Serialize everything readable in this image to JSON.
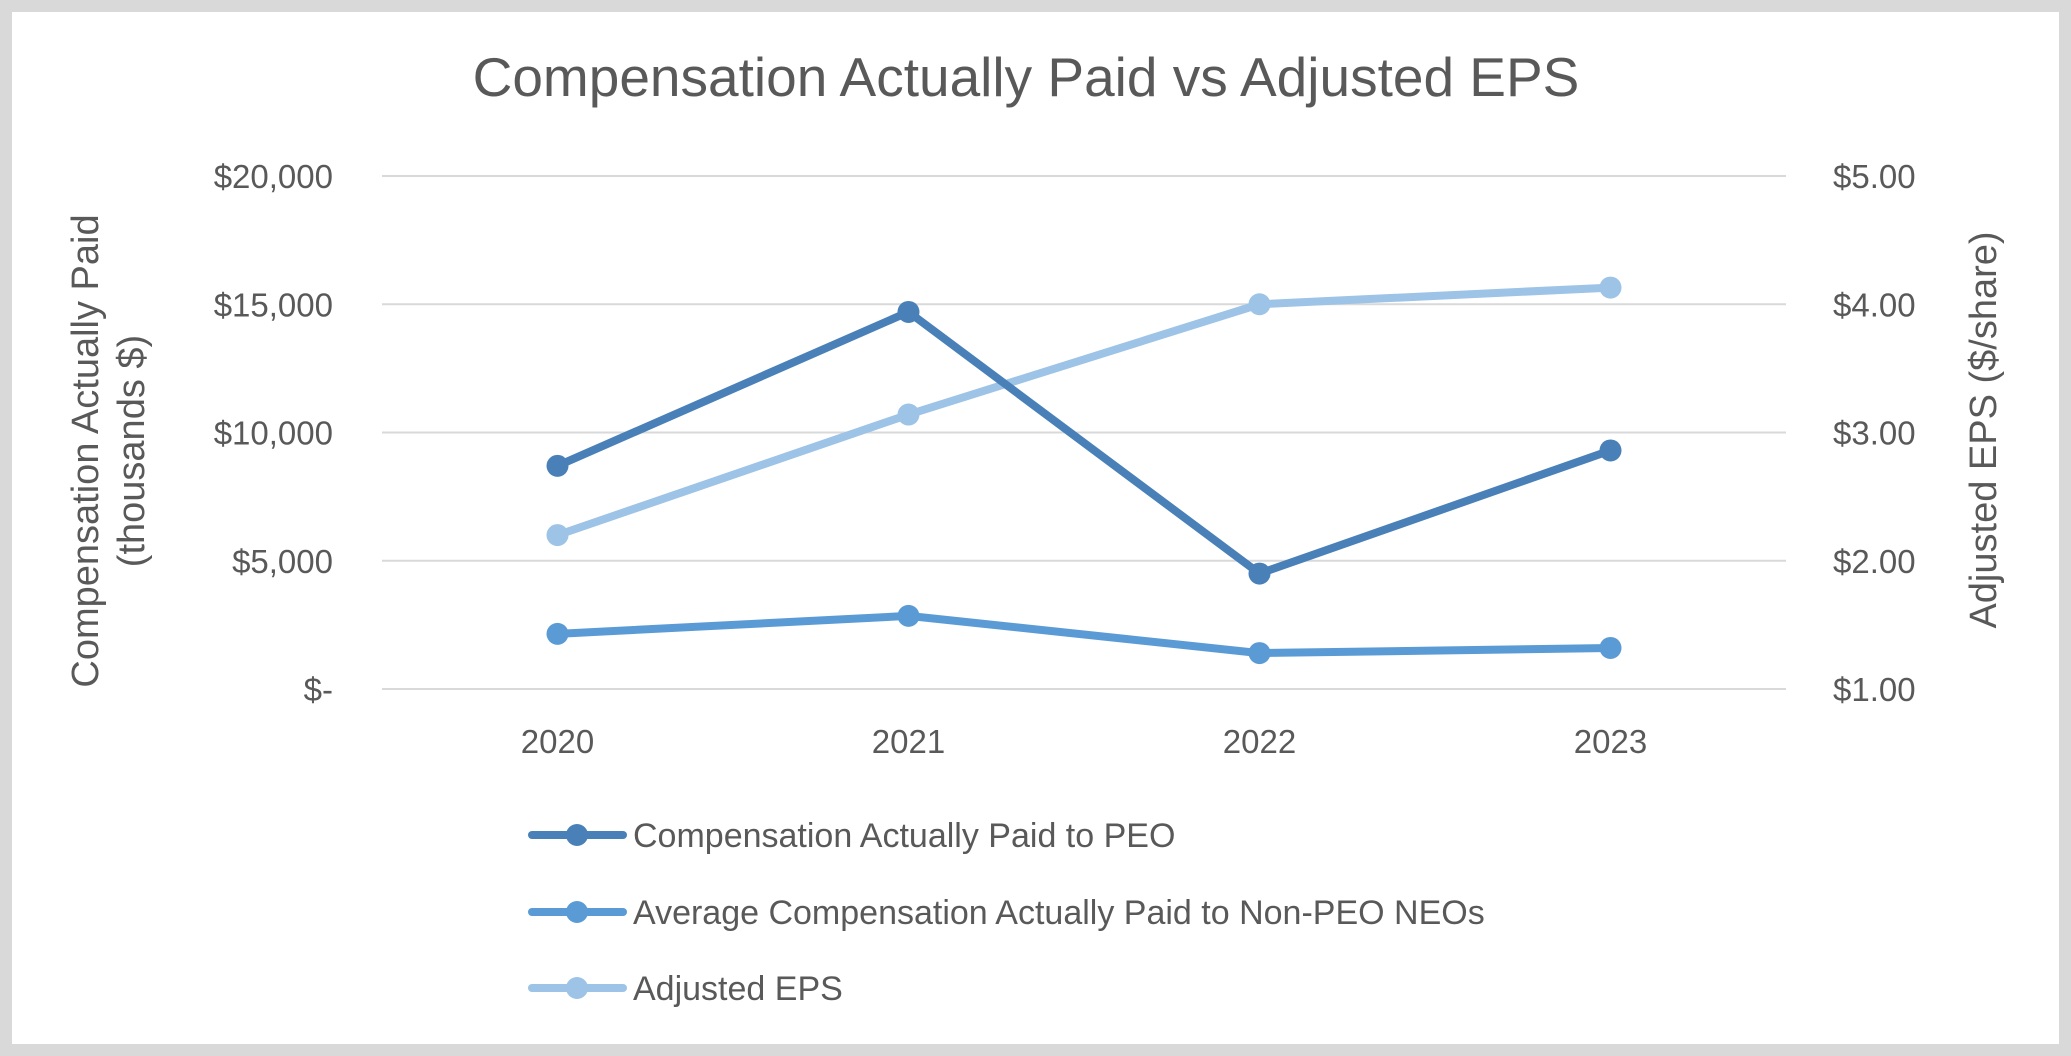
{
  "chart_data": {
    "type": "line",
    "title": "Compensation Actually Paid vs Adjusted EPS",
    "categories": [
      "2020",
      "2021",
      "2022",
      "2023"
    ],
    "y_left": {
      "label_line1": "Compensation Actually Paid",
      "label_line2": "(thousands $)",
      "range": [
        0,
        20000
      ],
      "ticks": [
        0,
        5000,
        10000,
        15000,
        20000
      ],
      "tick_labels": [
        "$-",
        "$5,000",
        "$10,000",
        "$15,000",
        "$20,000"
      ]
    },
    "y_right": {
      "label": "Adjusted EPS ($/share)",
      "range": [
        1.0,
        5.0
      ],
      "ticks": [
        1.0,
        2.0,
        3.0,
        4.0,
        5.0
      ],
      "tick_labels": [
        "$1.00",
        "$2.00",
        "$3.00",
        "$4.00",
        "$5.00"
      ]
    },
    "series": [
      {
        "name": "Compensation Actually Paid to PEO",
        "axis": "left",
        "color": "#4a80b8",
        "values": [
          8700,
          14700,
          4500,
          9300
        ]
      },
      {
        "name": "Average Compensation Actually Paid to Non-PEO NEOs",
        "axis": "left",
        "color": "#5b9bd5",
        "values": [
          2150,
          2850,
          1400,
          1600
        ]
      },
      {
        "name": "Adjusted EPS",
        "axis": "right",
        "color": "#9dc3e6",
        "values": [
          2.2,
          3.14,
          4.0,
          4.13
        ]
      }
    ],
    "grid": true,
    "legend_position": "bottom"
  }
}
